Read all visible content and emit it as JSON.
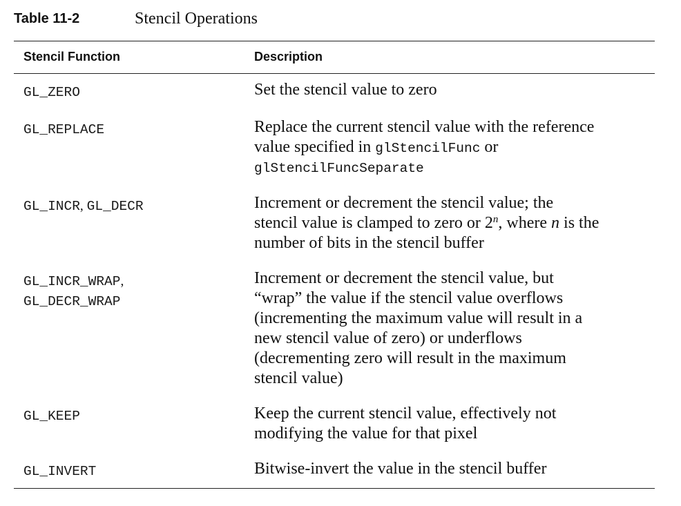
{
  "caption": {
    "label": "Table 11-2",
    "title": "Stencil Operations"
  },
  "table": {
    "headers": {
      "function": "Stencil Function",
      "description": "Description"
    },
    "rows": [
      {
        "function": [
          "GL_ZERO"
        ],
        "description": "Set the stencil value to zero"
      },
      {
        "function": [
          "GL_REPLACE"
        ],
        "description": "Replace the current stencil value with the reference value specified in glStencilFunc or glStencilFuncSeparate",
        "desc_parts": {
          "l1": "Replace the current stencil value with the reference",
          "l2a": "value specified in ",
          "l2b": "glStencilFunc",
          "l2c": " or",
          "l3": "glStencilFuncSeparate"
        }
      },
      {
        "function": [
          "GL_INCR",
          "GL_DECR"
        ],
        "function_sep": ", ",
        "description": "Increment or decrement the stencil value; the stencil value is clamped to zero or 2^n, where n is the number of bits in the stencil buffer",
        "desc_parts": {
          "l1": "Increment or decrement the stencil value; the",
          "l2a": "stencil value is clamped to zero or 2",
          "l2sup": "n",
          "l2b": ", where ",
          "l2i": "n",
          "l2c": " is the",
          "l3": "number of bits in the stencil buffer"
        }
      },
      {
        "function": [
          "GL_INCR_WRAP",
          "GL_DECR_WRAP"
        ],
        "function_sep": ",",
        "description": "Increment or decrement the stencil value, but “wrap” the value if the stencil value overflows (incrementing the maximum value will result in a new stencil value of zero) or underflows (decrementing zero will result in the maximum stencil value)",
        "desc_lines": [
          "Increment or decrement the stencil value, but",
          "“wrap” the value if the stencil value overflows",
          "(incrementing the maximum value will result in a",
          "new stencil value of zero) or underflows",
          "(decrementing zero will result in the maximum",
          "stencil value)"
        ]
      },
      {
        "function": [
          "GL_KEEP"
        ],
        "description": "Keep the current stencil value, effectively not modifying the value for that pixel",
        "desc_lines": [
          "Keep the current stencil value, effectively not",
          "modifying the value for that pixel"
        ]
      },
      {
        "function": [
          "GL_INVERT"
        ],
        "description": "Bitwise-invert the value in the stencil buffer"
      }
    ]
  }
}
